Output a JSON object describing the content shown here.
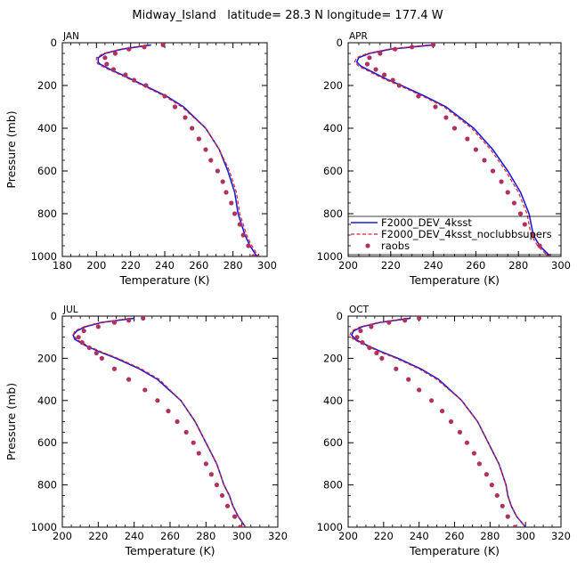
{
  "figure_title": "Midway_Island   latitude= 28.3 N longitude= 177.4 W",
  "colors": {
    "dev": "#1a1ad9",
    "noclubb": "#e0202a",
    "raobs": "#b03062"
  },
  "chart_data": [
    {
      "type": "line",
      "panel": "JAN",
      "xlabel": "Temperature (K)",
      "ylabel": "Pressure (mb)",
      "xlim": [
        180,
        300
      ],
      "xticks": [
        180,
        200,
        220,
        240,
        260,
        280,
        300
      ],
      "ylim": [
        1000,
        0
      ],
      "yticks": [
        0,
        200,
        400,
        600,
        800,
        1000
      ],
      "series": [
        {
          "name": "F2000_DEV_4ksst",
          "style": "solid",
          "p": [
            10,
            30,
            50,
            70,
            90,
            100,
            125,
            150,
            200,
            250,
            300,
            400,
            500,
            600,
            700,
            750,
            800,
            850,
            900,
            950,
            1000
          ],
          "t": [
            232,
            215,
            205,
            201,
            201,
            202,
            208,
            215,
            228,
            241,
            251,
            264,
            272,
            277,
            281,
            282,
            283,
            285,
            287,
            290,
            294
          ]
        },
        {
          "name": "F2000_DEV_4ksst_noclubbsupers",
          "style": "dashed",
          "p": [
            10,
            30,
            50,
            70,
            90,
            100,
            125,
            150,
            200,
            250,
            300,
            400,
            500,
            600,
            700,
            750,
            800,
            850,
            900,
            950,
            1000
          ],
          "t": [
            230,
            214,
            204,
            200,
            200,
            201,
            207,
            214,
            227,
            240,
            250,
            264,
            272,
            278,
            282,
            283,
            284,
            286,
            288,
            291,
            295
          ]
        },
        {
          "name": "raobs",
          "style": "dots",
          "p": [
            10,
            20,
            30,
            50,
            70,
            100,
            125,
            150,
            175,
            200,
            250,
            300,
            350,
            400,
            450,
            500,
            550,
            600,
            650,
            700,
            750,
            800,
            850,
            900,
            950,
            1000
          ],
          "t": [
            239,
            228,
            219,
            211,
            205,
            206,
            210,
            217,
            222,
            229,
            240,
            246,
            252,
            256,
            260,
            264,
            267,
            271,
            274,
            276,
            279,
            281,
            284,
            286,
            289,
            292
          ]
        }
      ]
    },
    {
      "type": "line",
      "panel": "APR",
      "xlabel": "Temperature (K)",
      "ylabel": "",
      "xlim": [
        200,
        300
      ],
      "xticks": [
        200,
        220,
        240,
        260,
        280,
        300
      ],
      "ylim": [
        1000,
        0
      ],
      "yticks": [
        0,
        200,
        400,
        600,
        800,
        1000
      ],
      "legend": {
        "position": "bottom-right",
        "entries": [
          {
            "label": "F2000_DEV_4ksst",
            "style": "solid"
          },
          {
            "label": "F2000_DEV_4ksst_noclubbsupers",
            "style": "dashed"
          },
          {
            "label": "raobs",
            "style": "dots"
          }
        ]
      },
      "series": [
        {
          "name": "F2000_DEV_4ksst",
          "style": "solid",
          "p": [
            10,
            30,
            50,
            70,
            90,
            110,
            140,
            170,
            200,
            250,
            300,
            400,
            500,
            600,
            700,
            750,
            800,
            850,
            900,
            950,
            1000
          ],
          "t": [
            240,
            220,
            210,
            205,
            204,
            206,
            212,
            218,
            225,
            236,
            246,
            259,
            268,
            275,
            281,
            283,
            285,
            286,
            287,
            290,
            295
          ]
        },
        {
          "name": "F2000_DEV_4ksst_noclubbsupers",
          "style": "dashed",
          "p": [
            10,
            30,
            50,
            70,
            90,
            110,
            140,
            170,
            200,
            250,
            300,
            400,
            500,
            600,
            700,
            750,
            800,
            850,
            900,
            950,
            1000
          ],
          "t": [
            238,
            219,
            209,
            204,
            203,
            205,
            211,
            217,
            224,
            235,
            245,
            258,
            267,
            274,
            280,
            282,
            284,
            285,
            286,
            289,
            294
          ]
        },
        {
          "name": "raobs",
          "style": "dots",
          "p": [
            10,
            20,
            30,
            50,
            70,
            100,
            125,
            150,
            175,
            200,
            250,
            300,
            350,
            400,
            450,
            500,
            550,
            600,
            650,
            700,
            750,
            800,
            850,
            900,
            950,
            1000
          ],
          "t": [
            240,
            230,
            222,
            215,
            210,
            209,
            213,
            217,
            221,
            224,
            233,
            241,
            246,
            250,
            256,
            260,
            264,
            268,
            272,
            275,
            278,
            281,
            283,
            287,
            290,
            294
          ]
        }
      ]
    },
    {
      "type": "line",
      "panel": "JUL",
      "xlabel": "Temperature (K)",
      "ylabel": "Pressure (mb)",
      "xlim": [
        200,
        320
      ],
      "xticks": [
        200,
        220,
        240,
        260,
        280,
        300,
        320
      ],
      "ylim": [
        1000,
        0
      ],
      "yticks": [
        0,
        200,
        400,
        600,
        800,
        1000
      ],
      "series": [
        {
          "name": "F2000_DEV_4ksst",
          "style": "solid",
          "p": [
            10,
            30,
            50,
            70,
            90,
            110,
            140,
            170,
            200,
            250,
            300,
            400,
            500,
            600,
            700,
            750,
            800,
            850,
            900,
            950,
            1000
          ],
          "t": [
            240,
            222,
            213,
            208,
            206,
            207,
            213,
            221,
            230,
            243,
            253,
            266,
            274,
            280,
            286,
            288,
            290,
            293,
            295,
            298,
            302
          ]
        },
        {
          "name": "F2000_DEV_4ksst_noclubbsupers",
          "style": "dashed",
          "p": [
            10,
            30,
            50,
            70,
            90,
            110,
            140,
            170,
            200,
            250,
            300,
            400,
            500,
            600,
            700,
            750,
            800,
            850,
            900,
            950,
            1000
          ],
          "t": [
            238,
            221,
            212,
            207,
            206,
            208,
            214,
            222,
            231,
            244,
            254,
            266,
            274,
            280,
            286,
            288,
            290,
            293,
            295,
            298,
            302
          ]
        },
        {
          "name": "raobs",
          "style": "dots",
          "p": [
            10,
            20,
            30,
            50,
            70,
            100,
            125,
            150,
            175,
            200,
            250,
            300,
            350,
            400,
            450,
            500,
            550,
            600,
            650,
            700,
            750,
            800,
            850,
            900,
            950,
            1000
          ],
          "t": [
            245,
            237,
            229,
            220,
            212,
            209,
            211,
            215,
            219,
            222,
            229,
            237,
            246,
            253,
            259,
            264,
            269,
            273,
            276,
            280,
            283,
            286,
            289,
            292,
            296,
            299
          ]
        }
      ]
    },
    {
      "type": "line",
      "panel": "OCT",
      "xlabel": "Temperature (K)",
      "ylabel": "",
      "xlim": [
        200,
        320
      ],
      "xticks": [
        200,
        220,
        240,
        260,
        280,
        300,
        320
      ],
      "ylim": [
        1000,
        0
      ],
      "yticks": [
        0,
        200,
        400,
        600,
        800,
        1000
      ],
      "series": [
        {
          "name": "F2000_DEV_4ksst",
          "style": "solid",
          "p": [
            10,
            30,
            50,
            70,
            90,
            110,
            140,
            170,
            200,
            250,
            300,
            400,
            500,
            600,
            700,
            750,
            800,
            850,
            900,
            950,
            1000
          ],
          "t": [
            235,
            218,
            208,
            203,
            202,
            204,
            211,
            219,
            228,
            241,
            251,
            264,
            273,
            279,
            285,
            287,
            289,
            290,
            292,
            295,
            300
          ]
        },
        {
          "name": "F2000_DEV_4ksst_noclubbsupers",
          "style": "dashed",
          "p": [
            10,
            30,
            50,
            70,
            90,
            110,
            140,
            170,
            200,
            250,
            300,
            400,
            500,
            600,
            700,
            750,
            800,
            850,
            900,
            950,
            1000
          ],
          "t": [
            233,
            217,
            207,
            202,
            201,
            203,
            210,
            218,
            227,
            240,
            250,
            264,
            273,
            279,
            285,
            287,
            289,
            290,
            292,
            295,
            300
          ]
        },
        {
          "name": "raobs",
          "style": "dots",
          "p": [
            10,
            20,
            30,
            50,
            70,
            100,
            125,
            150,
            175,
            200,
            250,
            300,
            350,
            400,
            450,
            500,
            550,
            600,
            650,
            700,
            750,
            800,
            850,
            900,
            950,
            1000
          ],
          "t": [
            240,
            232,
            223,
            213,
            207,
            205,
            208,
            212,
            216,
            219,
            227,
            234,
            240,
            247,
            253,
            258,
            263,
            267,
            271,
            274,
            278,
            281,
            284,
            287,
            290,
            294
          ]
        }
      ]
    }
  ]
}
